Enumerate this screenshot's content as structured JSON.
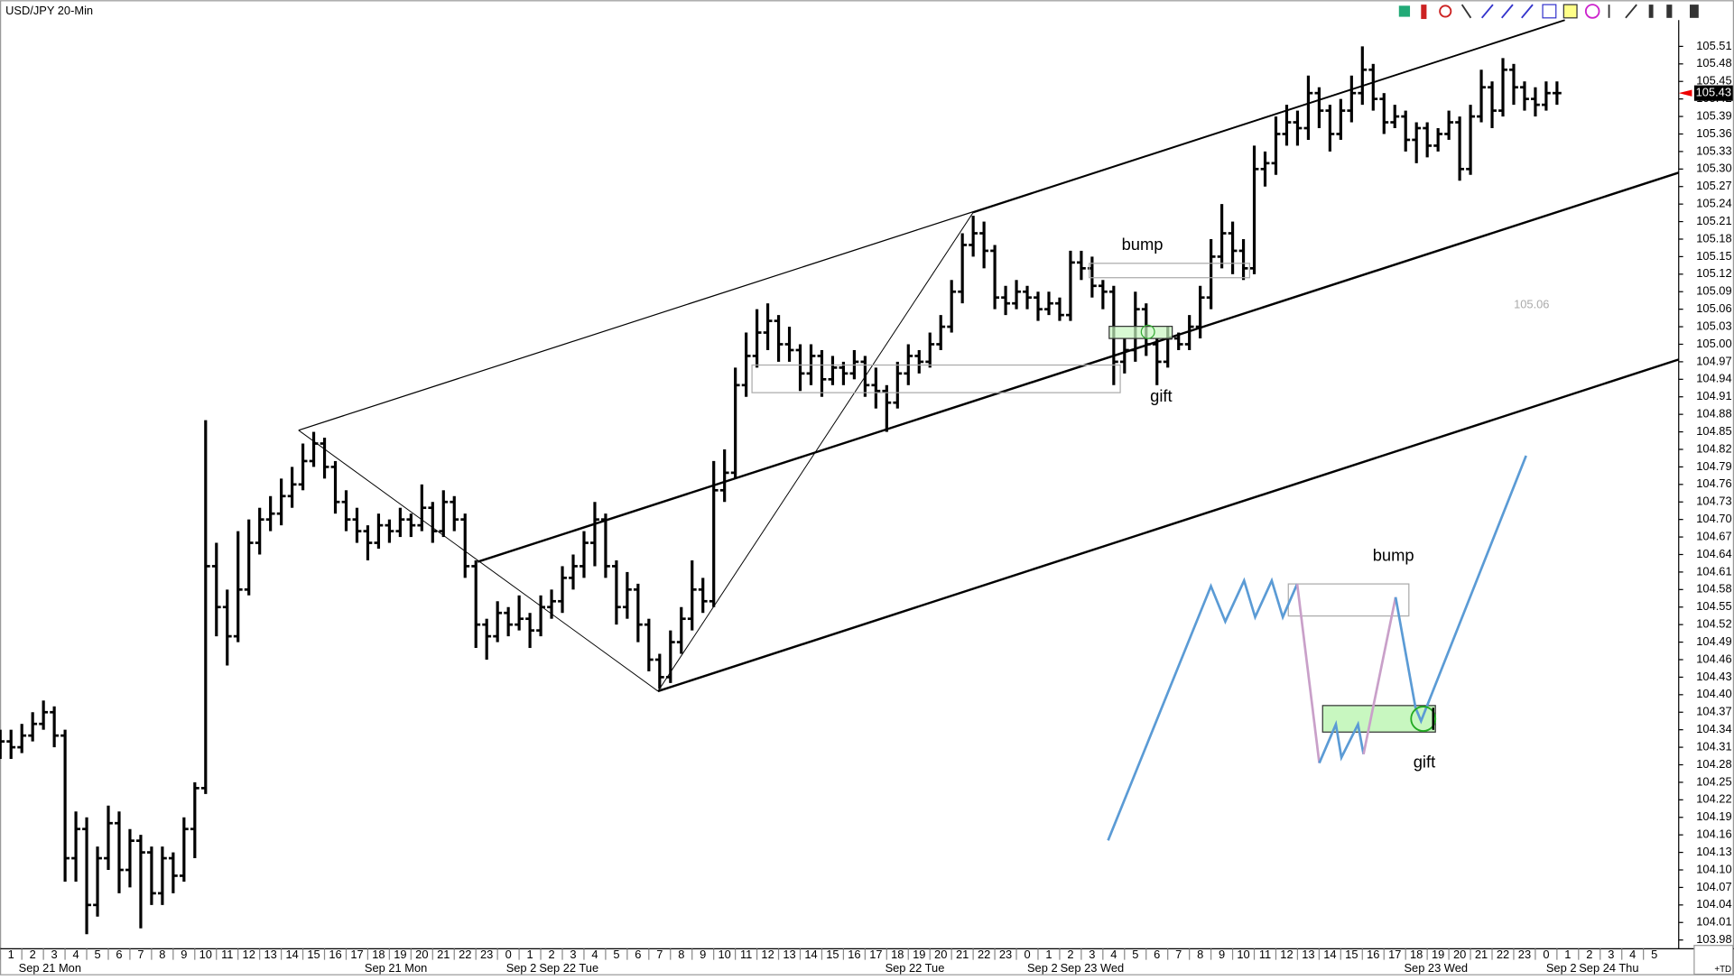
{
  "chart_data": {
    "type": "ohlc",
    "title": "USD/JPY 20-Min",
    "color": "#000000",
    "grid": false,
    "xlim": [
      -0.51,
      77.13
    ],
    "ylim": [
      103.965,
      105.555
    ],
    "last_price": 105.43,
    "price_note": 105.06,
    "annotations": [
      "bump",
      "gift",
      "bump",
      "gift"
    ],
    "footer": "+TD",
    "x": [
      -0.5,
      0,
      0.5,
      1,
      1.5,
      2,
      2.5,
      3,
      3.5,
      4,
      4.5,
      5,
      5.5,
      6,
      6.5,
      7,
      7.5,
      8,
      8.5,
      9,
      9.5,
      10,
      10.5,
      11,
      11.5,
      12,
      12.5,
      13,
      13.5,
      14,
      14.5,
      15,
      15.5,
      16,
      16.5,
      17,
      17.5,
      18,
      18.5,
      19,
      19.5,
      20,
      20.5,
      21,
      21.5,
      22,
      22.5,
      23,
      23.5,
      24,
      24.5,
      25,
      25.5,
      26,
      26.5,
      27,
      27.5,
      28,
      28.5,
      29,
      29.5,
      30,
      30.5,
      31,
      31.5,
      32,
      32.5,
      33,
      33.5,
      34,
      34.5,
      35,
      35.5,
      36,
      36.5,
      37,
      37.5,
      38,
      38.5,
      39,
      39.5,
      40,
      40.5,
      41,
      41.5,
      42,
      42.5,
      43,
      43.5,
      44,
      44.5,
      45,
      45.5,
      46,
      46.5,
      47,
      47.5,
      48,
      48.5,
      49,
      49.5,
      50,
      50.5,
      51,
      51.5,
      52,
      52.5,
      53,
      53.5,
      54,
      54.5,
      55,
      55.5,
      56,
      56.5,
      57,
      57.5,
      58,
      58.5,
      59,
      59.5,
      60,
      60.5,
      61,
      61.5,
      62,
      62.5,
      63,
      63.5,
      64,
      64.5,
      65,
      65.5,
      66,
      66.5,
      67,
      67.5,
      68,
      68.5,
      69,
      69.5,
      70,
      70.5,
      71,
      71.5
    ],
    "ohlc": [
      [
        104.31,
        104.34,
        104.29,
        104.32
      ],
      [
        104.32,
        104.34,
        104.29,
        104.31
      ],
      [
        104.31,
        104.35,
        104.3,
        104.33
      ],
      [
        104.33,
        104.37,
        104.32,
        104.35
      ],
      [
        104.35,
        104.39,
        104.34,
        104.37
      ],
      [
        104.37,
        104.38,
        104.31,
        104.33
      ],
      [
        104.33,
        104.34,
        104.08,
        104.12
      ],
      [
        104.12,
        104.2,
        104.08,
        104.17
      ],
      [
        104.17,
        104.19,
        103.99,
        104.04
      ],
      [
        104.04,
        104.14,
        104.02,
        104.12
      ],
      [
        104.12,
        104.21,
        104.1,
        104.18
      ],
      [
        104.18,
        104.2,
        104.06,
        104.1
      ],
      [
        104.1,
        104.17,
        104.07,
        104.15
      ],
      [
        104.15,
        104.16,
        104.0,
        104.13
      ],
      [
        104.13,
        104.14,
        104.04,
        104.06
      ],
      [
        104.06,
        104.14,
        104.04,
        104.12
      ],
      [
        104.12,
        104.13,
        104.06,
        104.09
      ],
      [
        104.09,
        104.19,
        104.08,
        104.17
      ],
      [
        104.17,
        104.25,
        104.12,
        104.24
      ],
      [
        104.24,
        104.87,
        104.23,
        104.62
      ],
      [
        104.62,
        104.66,
        104.5,
        104.55
      ],
      [
        104.55,
        104.58,
        104.45,
        104.5
      ],
      [
        104.5,
        104.68,
        104.49,
        104.58
      ],
      [
        104.58,
        104.7,
        104.57,
        104.66
      ],
      [
        104.66,
        104.72,
        104.64,
        104.7
      ],
      [
        104.7,
        104.74,
        104.68,
        104.71
      ],
      [
        104.71,
        104.77,
        104.69,
        104.74
      ],
      [
        104.74,
        104.79,
        104.72,
        104.76
      ],
      [
        104.76,
        104.83,
        104.75,
        104.8
      ],
      [
        104.8,
        104.85,
        104.79,
        104.83
      ],
      [
        104.83,
        104.84,
        104.77,
        104.79
      ],
      [
        104.79,
        104.8,
        104.71,
        104.73
      ],
      [
        104.73,
        104.75,
        104.68,
        104.7
      ],
      [
        104.7,
        104.72,
        104.66,
        104.68
      ],
      [
        104.68,
        104.69,
        104.63,
        104.66
      ],
      [
        104.66,
        104.71,
        104.65,
        104.69
      ],
      [
        104.69,
        104.7,
        104.66,
        104.68
      ],
      [
        104.68,
        104.72,
        104.67,
        104.7
      ],
      [
        104.7,
        104.71,
        104.67,
        104.69
      ],
      [
        104.69,
        104.76,
        104.68,
        104.72
      ],
      [
        104.72,
        104.73,
        104.66,
        104.68
      ],
      [
        104.68,
        104.75,
        104.67,
        104.73
      ],
      [
        104.73,
        104.74,
        104.68,
        104.7
      ],
      [
        104.7,
        104.71,
        104.6,
        104.62
      ],
      [
        104.62,
        104.63,
        104.48,
        104.52
      ],
      [
        104.52,
        104.53,
        104.46,
        104.5
      ],
      [
        104.5,
        104.56,
        104.49,
        104.54
      ],
      [
        104.54,
        104.55,
        104.5,
        104.52
      ],
      [
        104.52,
        104.57,
        104.51,
        104.53
      ],
      [
        104.53,
        104.54,
        104.48,
        104.51
      ],
      [
        104.51,
        104.57,
        104.5,
        104.55
      ],
      [
        104.55,
        104.58,
        104.53,
        104.56
      ],
      [
        104.56,
        104.62,
        104.54,
        104.6
      ],
      [
        104.6,
        104.64,
        104.58,
        104.62
      ],
      [
        104.62,
        104.68,
        104.6,
        104.66
      ],
      [
        104.66,
        104.73,
        104.62,
        104.7
      ],
      [
        104.7,
        104.71,
        104.6,
        104.62
      ],
      [
        104.62,
        104.63,
        104.52,
        104.55
      ],
      [
        104.55,
        104.61,
        104.53,
        104.58
      ],
      [
        104.58,
        104.59,
        104.49,
        104.52
      ],
      [
        104.52,
        104.53,
        104.44,
        104.46
      ],
      [
        104.46,
        104.47,
        104.41,
        104.43
      ],
      [
        104.43,
        104.51,
        104.42,
        104.49
      ],
      [
        104.49,
        104.55,
        104.47,
        104.53
      ],
      [
        104.53,
        104.63,
        104.51,
        104.58
      ],
      [
        104.58,
        104.6,
        104.54,
        104.56
      ],
      [
        104.56,
        104.8,
        104.55,
        104.75
      ],
      [
        104.75,
        104.82,
        104.73,
        104.78
      ],
      [
        104.78,
        104.96,
        104.77,
        104.93
      ],
      [
        104.93,
        105.02,
        104.91,
        104.98
      ],
      [
        104.98,
        105.06,
        104.96,
        105.02
      ],
      [
        105.02,
        105.07,
        104.99,
        105.04
      ],
      [
        105.04,
        105.05,
        104.97,
        105.0
      ],
      [
        105.0,
        105.03,
        104.97,
        104.99
      ],
      [
        104.99,
        105.0,
        104.92,
        104.95
      ],
      [
        104.95,
        105.0,
        104.93,
        104.98
      ],
      [
        104.98,
        104.99,
        104.91,
        104.94
      ],
      [
        104.94,
        104.98,
        104.93,
        104.96
      ],
      [
        104.96,
        104.97,
        104.93,
        104.95
      ],
      [
        104.95,
        104.99,
        104.94,
        104.97
      ],
      [
        104.97,
        104.98,
        104.91,
        104.93
      ],
      [
        104.93,
        104.96,
        104.89,
        104.92
      ],
      [
        104.92,
        104.93,
        104.85,
        104.9
      ],
      [
        104.9,
        104.97,
        104.89,
        104.95
      ],
      [
        104.95,
        105.0,
        104.93,
        104.98
      ],
      [
        104.98,
        104.99,
        104.95,
        104.97
      ],
      [
        104.97,
        105.02,
        104.96,
        105.0
      ],
      [
        105.0,
        105.05,
        104.99,
        105.03
      ],
      [
        105.03,
        105.11,
        105.02,
        105.09
      ],
      [
        105.09,
        105.19,
        105.07,
        105.17
      ],
      [
        105.17,
        105.22,
        105.15,
        105.19
      ],
      [
        105.19,
        105.21,
        105.13,
        105.16
      ],
      [
        105.16,
        105.17,
        105.06,
        105.08
      ],
      [
        105.08,
        105.1,
        105.05,
        105.07
      ],
      [
        105.07,
        105.11,
        105.06,
        105.09
      ],
      [
        105.09,
        105.1,
        105.06,
        105.08
      ],
      [
        105.08,
        105.09,
        105.04,
        105.06
      ],
      [
        105.06,
        105.09,
        105.05,
        105.07
      ],
      [
        105.07,
        105.08,
        105.04,
        105.05
      ],
      [
        105.05,
        105.16,
        105.04,
        105.14
      ],
      [
        105.14,
        105.16,
        105.11,
        105.13
      ],
      [
        105.13,
        105.15,
        105.08,
        105.1
      ],
      [
        105.1,
        105.11,
        105.06,
        105.09
      ],
      [
        105.09,
        105.1,
        104.93,
        104.97
      ],
      [
        104.97,
        105.01,
        104.95,
        104.99
      ],
      [
        104.99,
        105.09,
        104.97,
        105.06
      ],
      [
        105.06,
        105.07,
        104.98,
        105.0
      ],
      [
        105.0,
        105.01,
        104.93,
        104.97
      ],
      [
        104.97,
        105.03,
        104.96,
        105.01
      ],
      [
        105.01,
        105.02,
        104.99,
        105.0
      ],
      [
        105.0,
        105.05,
        104.99,
        105.03
      ],
      [
        105.03,
        105.1,
        105.01,
        105.08
      ],
      [
        105.08,
        105.18,
        105.06,
        105.15
      ],
      [
        105.15,
        105.24,
        105.13,
        105.19
      ],
      [
        105.19,
        105.21,
        105.12,
        105.16
      ],
      [
        105.16,
        105.18,
        105.11,
        105.13
      ],
      [
        105.13,
        105.34,
        105.12,
        105.3
      ],
      [
        105.3,
        105.33,
        105.27,
        105.31
      ],
      [
        105.31,
        105.39,
        105.29,
        105.36
      ],
      [
        105.36,
        105.41,
        105.34,
        105.38
      ],
      [
        105.38,
        105.4,
        105.34,
        105.37
      ],
      [
        105.37,
        105.46,
        105.35,
        105.43
      ],
      [
        105.43,
        105.44,
        105.37,
        105.4
      ],
      [
        105.4,
        105.41,
        105.33,
        105.36
      ],
      [
        105.36,
        105.42,
        105.35,
        105.4
      ],
      [
        105.4,
        105.46,
        105.38,
        105.43
      ],
      [
        105.43,
        105.51,
        105.41,
        105.47
      ],
      [
        105.47,
        105.48,
        105.4,
        105.42
      ],
      [
        105.42,
        105.43,
        105.36,
        105.38
      ],
      [
        105.38,
        105.41,
        105.37,
        105.39
      ],
      [
        105.39,
        105.4,
        105.33,
        105.35
      ],
      [
        105.35,
        105.38,
        105.31,
        105.37
      ],
      [
        105.37,
        105.38,
        105.32,
        105.34
      ],
      [
        105.34,
        105.37,
        105.33,
        105.36
      ],
      [
        105.36,
        105.4,
        105.35,
        105.38
      ],
      [
        105.38,
        105.39,
        105.28,
        105.3
      ],
      [
        105.3,
        105.41,
        105.29,
        105.39
      ],
      [
        105.39,
        105.47,
        105.38,
        105.44
      ],
      [
        105.44,
        105.45,
        105.37,
        105.4
      ],
      [
        105.4,
        105.49,
        105.39,
        105.47
      ],
      [
        105.47,
        105.48,
        105.41,
        105.44
      ],
      [
        105.44,
        105.45,
        105.4,
        105.42
      ],
      [
        105.42,
        105.44,
        105.39,
        105.41
      ],
      [
        105.41,
        105.45,
        105.4,
        105.43
      ],
      [
        105.43,
        105.45,
        105.41,
        105.43
      ]
    ],
    "yticks": [
      105.51,
      105.48,
      105.45,
      105.42,
      105.39,
      105.36,
      105.33,
      {
        "value": 105.3,
        "label": "105.30"
      },
      105.27,
      105.24,
      105.21,
      105.18,
      105.15,
      105.12,
      105.09,
      105.06,
      105.03,
      {
        "value": 105.0,
        "label": "105.00"
      },
      104.97,
      104.94,
      104.91,
      104.88,
      104.85,
      104.82,
      104.79,
      104.76,
      104.73,
      {
        "value": 104.7,
        "label": "104.70"
      },
      104.67,
      104.64,
      104.61,
      104.58,
      104.55,
      104.52,
      104.49,
      104.46,
      104.43,
      {
        "value": 104.4,
        "label": "104.40"
      },
      104.37,
      104.34,
      104.31,
      104.28,
      104.25,
      104.22,
      104.19,
      104.16,
      104.13,
      {
        "value": 104.1,
        "label": "104.10"
      },
      104.07,
      104.04,
      104.01,
      103.98
    ],
    "xticks": [
      {
        "value": 0,
        "label": "1"
      },
      {
        "value": 1,
        "label": "2"
      },
      {
        "value": 2,
        "label": "3"
      },
      {
        "value": 3,
        "label": "4"
      },
      {
        "value": 4,
        "label": "5"
      },
      {
        "value": 5,
        "label": "6"
      },
      {
        "value": 6,
        "label": "7"
      },
      {
        "value": 7,
        "label": "8"
      },
      {
        "value": 8,
        "label": "9"
      },
      {
        "value": 9,
        "label": "10"
      },
      {
        "value": 10,
        "label": "11"
      },
      {
        "value": 11,
        "label": "12"
      },
      {
        "value": 12,
        "label": "13"
      },
      {
        "value": 13,
        "label": "14"
      },
      {
        "value": 14,
        "label": "15"
      },
      {
        "value": 15,
        "label": "16"
      },
      {
        "value": 16,
        "label": "17"
      },
      {
        "value": 17,
        "label": "18"
      },
      {
        "value": 18,
        "label": "19"
      },
      {
        "value": 19,
        "label": "20"
      },
      {
        "value": 20,
        "label": "21"
      },
      {
        "value": 21,
        "label": "22"
      },
      {
        "value": 22,
        "label": "23"
      },
      {
        "value": 23,
        "label": "0"
      },
      {
        "value": 24,
        "label": "1"
      },
      {
        "value": 25,
        "label": "2"
      },
      {
        "value": 26,
        "label": "3"
      },
      {
        "value": 27,
        "label": "4"
      },
      {
        "value": 28,
        "label": "5"
      },
      {
        "value": 29,
        "label": "6"
      },
      {
        "value": 30,
        "label": "7"
      },
      {
        "value": 31,
        "label": "8"
      },
      {
        "value": 32,
        "label": "9"
      },
      {
        "value": 33,
        "label": "10"
      },
      {
        "value": 34,
        "label": "11"
      },
      {
        "value": 35,
        "label": "12"
      },
      {
        "value": 36,
        "label": "13"
      },
      {
        "value": 37,
        "label": "14"
      },
      {
        "value": 38,
        "label": "15"
      },
      {
        "value": 39,
        "label": "16"
      },
      {
        "value": 40,
        "label": "17"
      },
      {
        "value": 41,
        "label": "18"
      },
      {
        "value": 42,
        "label": "19"
      },
      {
        "value": 43,
        "label": "20"
      },
      {
        "value": 44,
        "label": "21"
      },
      {
        "value": 45,
        "label": "22"
      },
      {
        "value": 46,
        "label": "23"
      },
      {
        "value": 47,
        "label": "0"
      },
      {
        "value": 48,
        "label": "1"
      },
      {
        "value": 49,
        "label": "2"
      },
      {
        "value": 50,
        "label": "3"
      },
      {
        "value": 51,
        "label": "4"
      },
      {
        "value": 52,
        "label": "5"
      },
      {
        "value": 53,
        "label": "6"
      },
      {
        "value": 54,
        "label": "7"
      },
      {
        "value": 55,
        "label": "8"
      },
      {
        "value": 56,
        "label": "9"
      },
      {
        "value": 57,
        "label": "10"
      },
      {
        "value": 58,
        "label": "11"
      },
      {
        "value": 59,
        "label": "12"
      },
      {
        "value": 60,
        "label": "13"
      },
      {
        "value": 61,
        "label": "14"
      },
      {
        "value": 62,
        "label": "15"
      },
      {
        "value": 63,
        "label": "16"
      },
      {
        "value": 64,
        "label": "17"
      },
      {
        "value": 65,
        "label": "18"
      },
      {
        "value": 66,
        "label": "19"
      },
      {
        "value": 67,
        "label": "20"
      },
      {
        "value": 68,
        "label": "21"
      },
      {
        "value": 69,
        "label": "22"
      },
      {
        "value": 70,
        "label": "23"
      },
      {
        "value": 71,
        "label": "0"
      },
      {
        "value": 72,
        "label": "1"
      },
      {
        "value": 73,
        "label": "2"
      },
      {
        "value": 74,
        "label": "3"
      },
      {
        "value": 75,
        "label": "4"
      },
      {
        "value": 76,
        "label": "5"
      }
    ],
    "date_labels": [
      {
        "value": 1.8,
        "label": "Sep 21 Mon"
      },
      {
        "value": 17.8,
        "label": "Sep 21 Mon"
      },
      {
        "value": 23.6,
        "label": "Sep 2"
      },
      {
        "value": 25.8,
        "label": "Sep 22 Tue"
      },
      {
        "value": 41.8,
        "label": "Sep 22 Tue"
      },
      {
        "value": 47.7,
        "label": "Sep 2"
      },
      {
        "value": 50,
        "label": "Sep 23 Wed"
      },
      {
        "value": 65.9,
        "label": "Sep 23 Wed"
      },
      {
        "value": 71.7,
        "label": "Sep 2"
      },
      {
        "value": 73.9,
        "label": "Sep 24 Thu"
      }
    ]
  }
}
